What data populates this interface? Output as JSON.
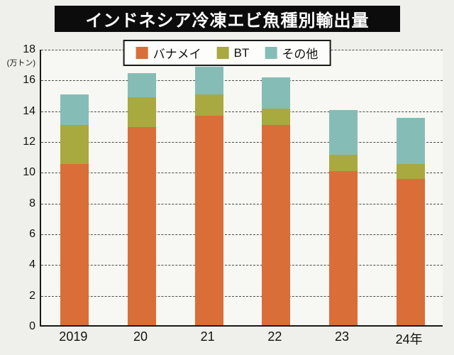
{
  "title": "インドネシア冷凍エビ魚種別輸出量",
  "chart_data": {
    "type": "bar",
    "stacked": true,
    "title": "インドネシア冷凍エビ魚種別輸出量",
    "categories": [
      "2019",
      "20",
      "21",
      "22",
      "23",
      "24年"
    ],
    "series": [
      {
        "name": "バナメイ",
        "color": "#d96e38",
        "values": [
          10.5,
          12.9,
          13.6,
          13.0,
          10.0,
          9.5
        ]
      },
      {
        "name": "BT",
        "color": "#a8a93f",
        "values": [
          2.5,
          1.9,
          1.4,
          1.1,
          1.1,
          1.0
        ]
      },
      {
        "name": "その他",
        "color": "#85bdb6",
        "values": [
          2.0,
          1.6,
          1.8,
          2.0,
          2.9,
          3.0
        ]
      }
    ],
    "totals": [
      15.0,
      16.4,
      16.8,
      16.1,
      14.0,
      13.5
    ],
    "ylabel_unit": "(万トン)",
    "ylim": [
      0,
      18
    ],
    "yticks": [
      0,
      2,
      4,
      6,
      8,
      10,
      12,
      14,
      16,
      18
    ],
    "grid": "dashed-horizontal",
    "legend_position": "top-center"
  }
}
